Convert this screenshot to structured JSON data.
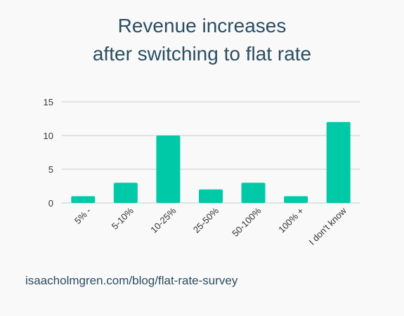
{
  "title_line1": "Revenue increases",
  "title_line2": "after switching to flat rate",
  "source": "isaacholmgren.com/blog/flat-rate-survey",
  "colors": {
    "bar": "#00c9a7",
    "grid": "#cccccc",
    "title": "#2a4d63",
    "background": "#f9f9f9"
  },
  "chart_data": {
    "type": "bar",
    "title": "Revenue increases after switching to flat rate",
    "xlabel": "",
    "ylabel": "",
    "categories": [
      "5% -",
      "5-10%",
      "10-25%",
      "25-50%",
      "50-100%",
      "100% +",
      "I don't know"
    ],
    "values": [
      1,
      3,
      10,
      2,
      3,
      1,
      12
    ],
    "ylim": [
      0,
      15
    ],
    "yticks": [
      0,
      5,
      10,
      15
    ],
    "grid": true,
    "legend": "none"
  }
}
